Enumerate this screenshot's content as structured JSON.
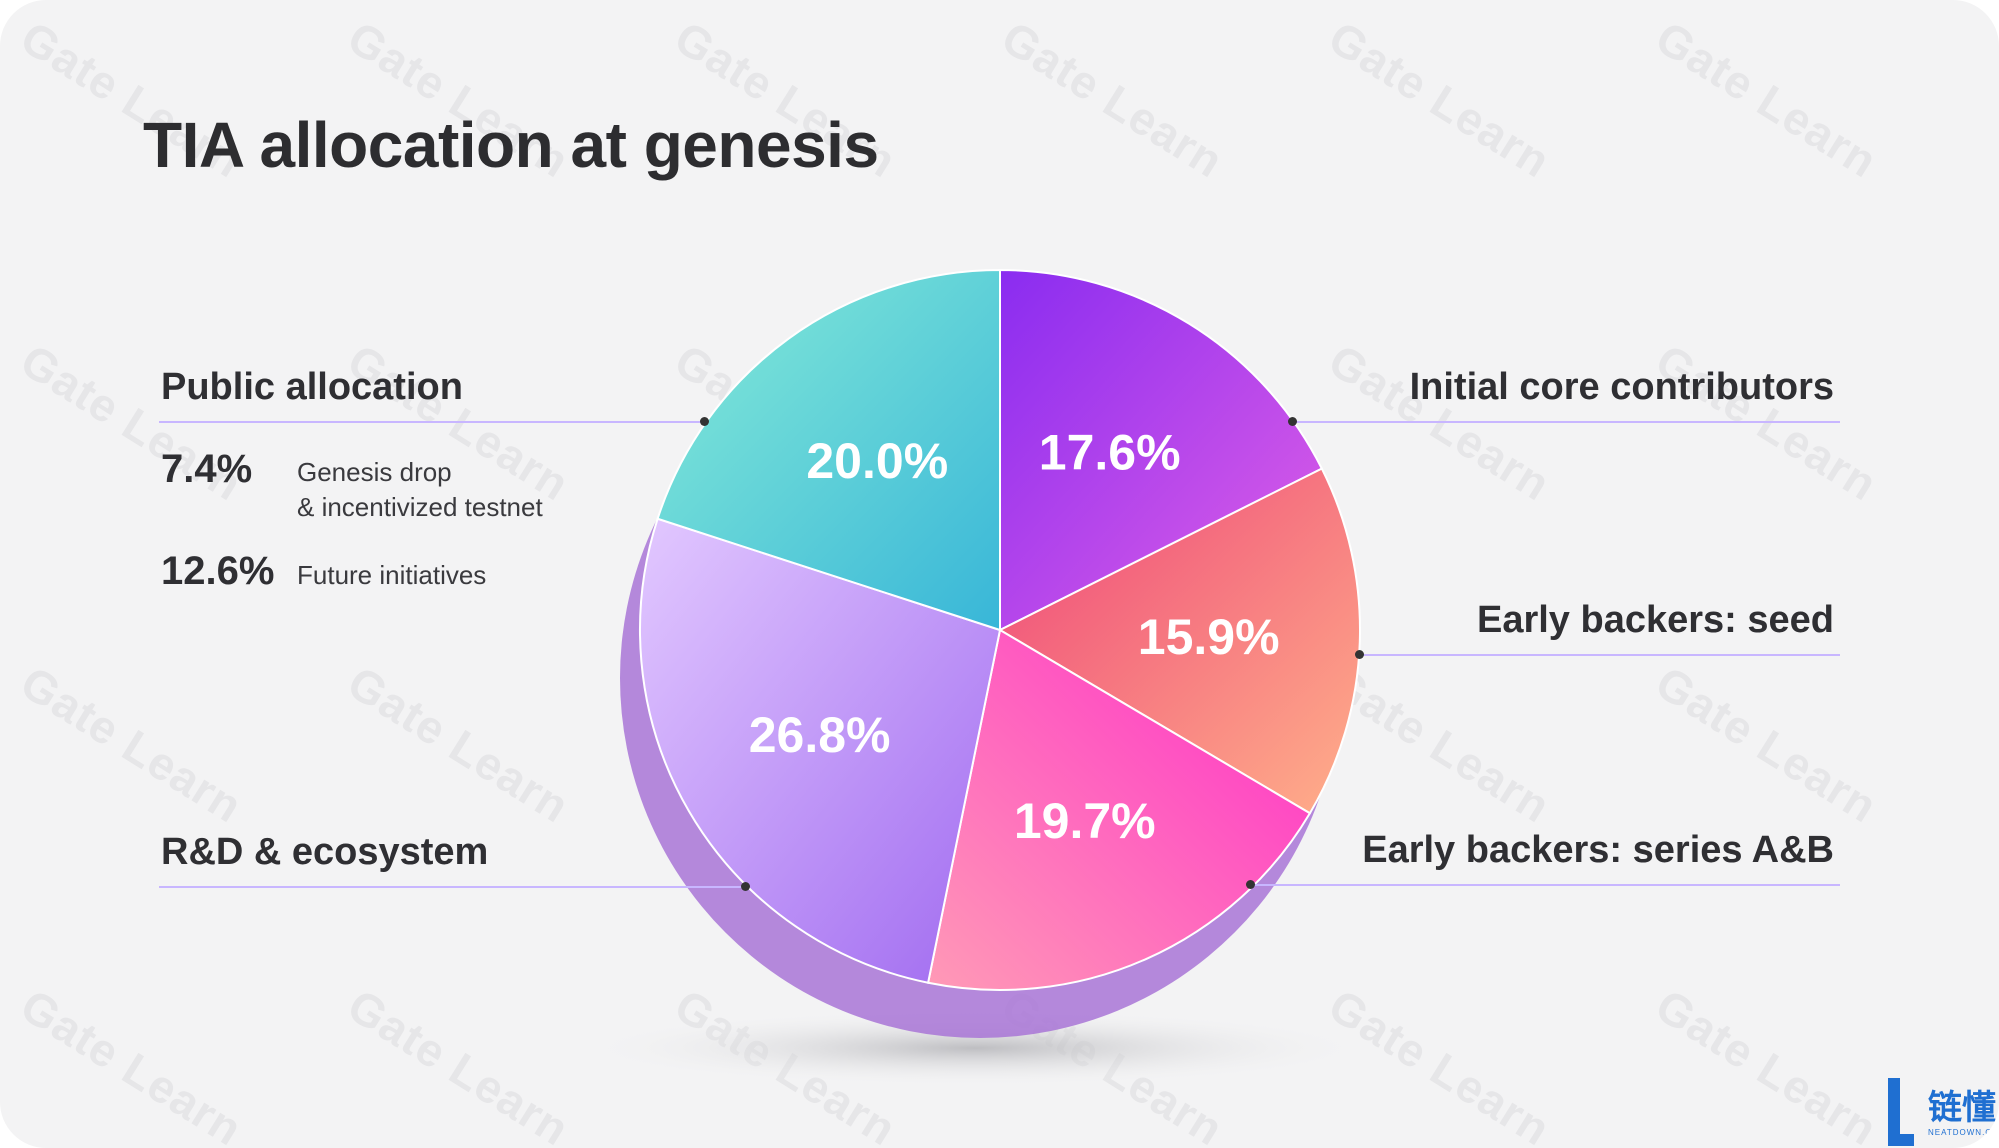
{
  "title": "TIA allocation at genesis",
  "watermark_text": "Gate Learn",
  "chart_data": {
    "type": "pie",
    "title": "TIA allocation at genesis",
    "start_angle_deg": 0,
    "direction": "clockwise",
    "slices": [
      {
        "label": "Initial core contributors",
        "value": 17.6,
        "value_label": "17.6%",
        "color": "#b040f0"
      },
      {
        "label": "Early backers: seed",
        "value": 15.9,
        "value_label": "15.9%",
        "color": "#f4607e"
      },
      {
        "label": "Early backers: series A&B",
        "value": 19.7,
        "value_label": "19.7%",
        "color": "#f535c6"
      },
      {
        "label": "R&D & ecosystem",
        "value": 26.8,
        "value_label": "26.8%",
        "color": "#b88af8"
      },
      {
        "label": "Public allocation",
        "value": 20.0,
        "value_label": "20.0%",
        "color": "#5cd3d6"
      }
    ],
    "public_allocation_breakdown": [
      {
        "pct": "7.4%",
        "desc_line1": "Genesis drop",
        "desc_line2": "& incentivized testnet"
      },
      {
        "pct": "12.6%",
        "desc_line1": "Future initiatives",
        "desc_line2": ""
      }
    ]
  },
  "logo": {
    "text": "链懂",
    "sub": "NEATDOWN.COM"
  }
}
